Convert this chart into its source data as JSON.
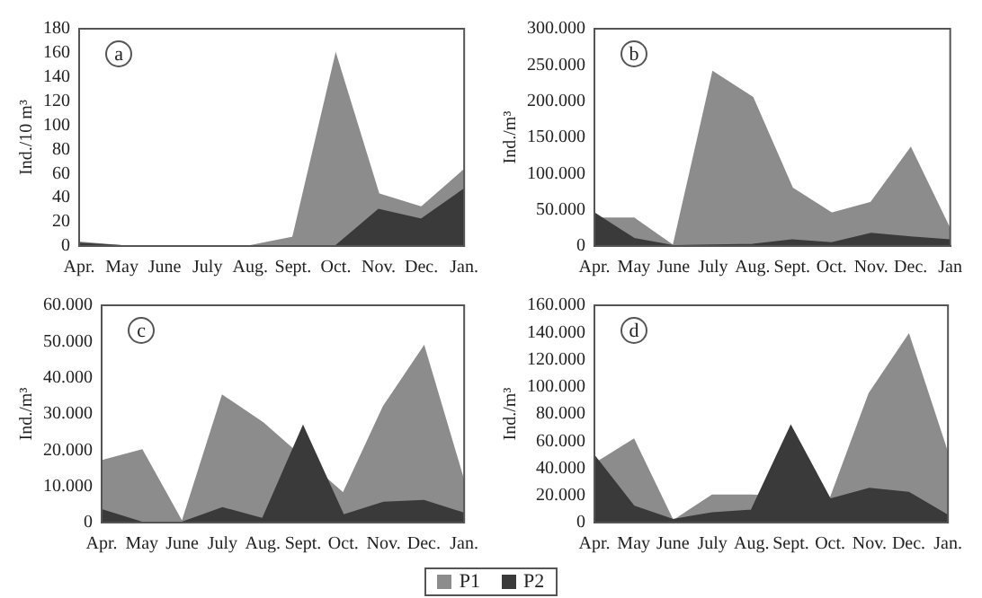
{
  "chart_data": [
    {
      "type": "area",
      "annotations": [
        "a"
      ],
      "ylabel": "Ind./10 m³",
      "categories": [
        "Apr.",
        "May",
        "June",
        "July",
        "Aug.",
        "Sept.",
        "Oct.",
        "Nov.",
        "Dec.",
        "Jan."
      ],
      "ylim": [
        0,
        180
      ],
      "yticks": [
        0,
        20,
        40,
        60,
        80,
        100,
        120,
        140,
        160,
        180
      ],
      "legend": "bottom",
      "grid": false,
      "series": [
        {
          "name": "P1",
          "color": "#8c8c8c",
          "values": [
            3,
            0,
            0,
            0,
            0,
            7,
            158,
            43,
            32,
            63
          ]
        },
        {
          "name": "P2",
          "color": "#3a3a3a",
          "values": [
            2,
            0,
            0,
            0,
            0,
            0,
            0,
            30,
            22,
            47
          ]
        }
      ]
    },
    {
      "type": "area",
      "annotations": [
        "b"
      ],
      "ylabel": "Ind./m³",
      "categories": [
        "Apr.",
        "May",
        "June",
        "July",
        "Aug.",
        "Sept.",
        "Oct.",
        "Nov.",
        "Dec.",
        "Jan"
      ],
      "ylim": [
        0,
        300000
      ],
      "yticks": [
        {
          "value": 0,
          "label": "0"
        },
        {
          "value": 50000,
          "label": "50.000"
        },
        {
          "value": 100000,
          "label": "100.000"
        },
        {
          "value": 150000,
          "label": "150.000"
        },
        {
          "value": 200000,
          "label": "200.000"
        },
        {
          "value": 250000,
          "label": "250.000"
        },
        {
          "value": 300000,
          "label": "300.000"
        }
      ],
      "grid": false,
      "series": [
        {
          "color": "#8c8c8c",
          "values": [
            38000,
            38000,
            0,
            240000,
            205000,
            80000,
            45000,
            60000,
            135000,
            22000
          ]
        },
        {
          "color": "#3a3a3a",
          "values": [
            45000,
            10000,
            0,
            1000,
            2000,
            8000,
            4000,
            17000,
            12000,
            8000
          ]
        }
      ]
    },
    {
      "type": "area",
      "annotations": [
        "c"
      ],
      "ylabel": "Ind./m³",
      "categories": [
        "Apr.",
        "May",
        "June",
        "July",
        "Aug.",
        "Sept.",
        "Oct.",
        "Nov.",
        "Dec.",
        "Jan."
      ],
      "ylim": [
        0,
        60000
      ],
      "yticks": [
        {
          "value": 0,
          "label": "0"
        },
        {
          "value": 10000,
          "label": "10.000"
        },
        {
          "value": 20000,
          "label": "20.000"
        },
        {
          "value": 30000,
          "label": "30.000"
        },
        {
          "value": 40000,
          "label": "40.000"
        },
        {
          "value": 50000,
          "label": "50.000"
        },
        {
          "value": 60000,
          "label": "60.000"
        }
      ],
      "grid": false,
      "series": [
        {
          "color": "#8c8c8c",
          "values": [
            17000,
            20000,
            0,
            35000,
            27500,
            null,
            8000,
            32000,
            48500,
            11000
          ]
        },
        {
          "color": "#3a3a3a",
          "values": [
            3500,
            0,
            0,
            4000,
            1000,
            26500,
            2000,
            5500,
            6000,
            2500
          ]
        }
      ]
    },
    {
      "type": "area",
      "annotations": [
        "d"
      ],
      "ylabel": "Ind./m³",
      "categories": [
        "Apr.",
        "May",
        "June",
        "July",
        "Aug.",
        "Sept.",
        "Oct.",
        "Nov.",
        "Dec.",
        "Jan."
      ],
      "ylim": [
        0,
        160000
      ],
      "yticks": [
        {
          "value": 0,
          "label": "0"
        },
        {
          "value": 20000,
          "label": "20.000"
        },
        {
          "value": 40000,
          "label": "40.000"
        },
        {
          "value": 60000,
          "label": "60.000"
        },
        {
          "value": 80000,
          "label": "80.000"
        },
        {
          "value": 100000,
          "label": "100.000"
        },
        {
          "value": 120000,
          "label": "120.000"
        },
        {
          "value": 140000,
          "label": "140.000"
        },
        {
          "value": 160000,
          "label": "160.000"
        }
      ],
      "grid": false,
      "series": [
        {
          "color": "#8c8c8c",
          "values": [
            43000,
            61000,
            1000,
            20000,
            20000,
            null,
            17000,
            95000,
            138000,
            50000
          ]
        },
        {
          "color": "#3a3a3a",
          "values": [
            49000,
            12000,
            2000,
            7000,
            9000,
            71000,
            17000,
            25000,
            22000,
            5000
          ]
        }
      ]
    }
  ]
}
